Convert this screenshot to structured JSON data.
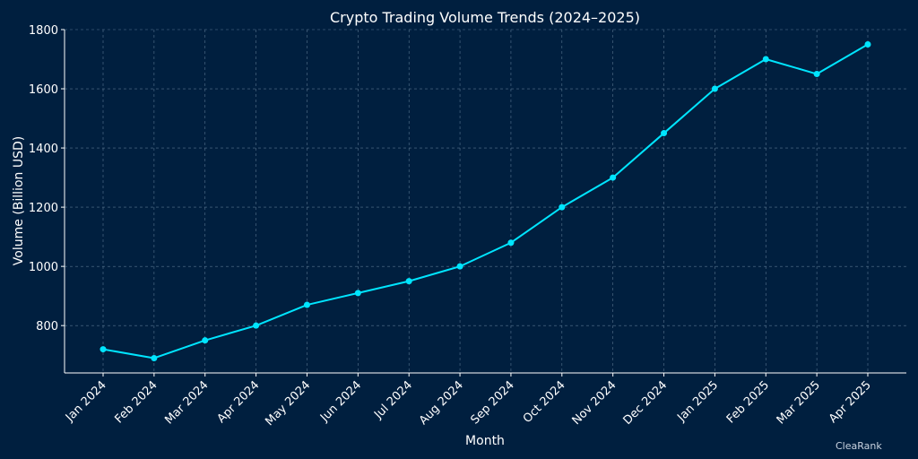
{
  "chart_data": {
    "type": "line",
    "title": "Crypto Trading Volume Trends (2024–2025)",
    "xlabel": "Month",
    "ylabel": "Volume (Billion USD)",
    "categories": [
      "Jan 2024",
      "Feb 2024",
      "Mar 2024",
      "Apr 2024",
      "May 2024",
      "Jun 2024",
      "Jul 2024",
      "Aug 2024",
      "Sep 2024",
      "Oct 2024",
      "Nov 2024",
      "Dec 2024",
      "Jan 2025",
      "Feb 2025",
      "Mar 2025",
      "Apr 2025"
    ],
    "series": [
      {
        "values": [
          720,
          690,
          750,
          800,
          870,
          910,
          950,
          1000,
          1080,
          1200,
          1300,
          1450,
          1600,
          1700,
          1650,
          1750
        ]
      }
    ],
    "ylim": [
      640,
      1800
    ],
    "yticks": [
      800,
      1000,
      1200,
      1400,
      1600,
      1800
    ],
    "grid": true,
    "colors": {
      "background": "#001f3f",
      "line": "#00e5ff",
      "grid": "#6f8aa3",
      "axis": "#ffffff"
    }
  },
  "watermark": "CleaRank"
}
